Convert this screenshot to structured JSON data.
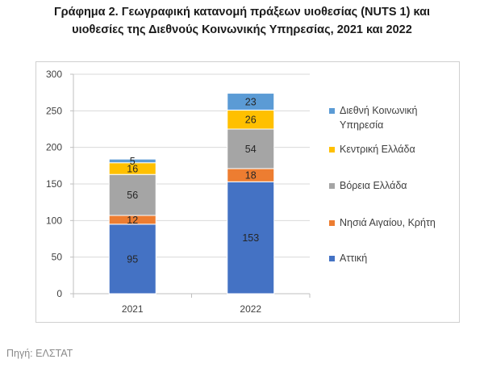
{
  "title": {
    "line1": "Γράφημα 2. Γεωγραφική κατανομή πράξεων υιοθεσίας (NUTS 1) και",
    "line2": "υιοθεσίες της Διεθνούς Κοινωνικής Υπηρεσίας, 2021 και 2022"
  },
  "source": "Πηγή: ΕΛΣΤΑΤ",
  "chart_data": {
    "type": "bar",
    "stacked": true,
    "title": "Γράφημα 2. Γεωγραφική κατανομή πράξεων υιοθεσίας (NUTS 1) και υιοθεσίες της Διεθνούς Κοινωνικής Υπηρεσίας, 2021 και 2022",
    "xlabel": "",
    "ylabel": "",
    "categories": [
      "2021",
      "2022"
    ],
    "ylim": [
      0,
      300
    ],
    "yticks": [
      0,
      50,
      100,
      150,
      200,
      250,
      300
    ],
    "grid": true,
    "legend_position": "right",
    "series": [
      {
        "name": "Αττική",
        "color": "#4472C4",
        "values": [
          95,
          153
        ]
      },
      {
        "name": "Νησιά Αιγαίου, Κρήτη",
        "color": "#ED7D31",
        "values": [
          12,
          18
        ]
      },
      {
        "name": "Βόρεια Ελλάδα",
        "color": "#A5A5A5",
        "values": [
          56,
          54
        ]
      },
      {
        "name": "Κεντρική Ελλάδα",
        "color": "#FFC000",
        "values": [
          16,
          26
        ]
      },
      {
        "name": "Διεθνή Κοινωνική Υπηρεσία",
        "color": "#5B9BD5",
        "values": [
          5,
          23
        ]
      }
    ],
    "legend_order": [
      {
        "label_lines": [
          "Διεθνή Κοινωνική",
          "Υπηρεσία"
        ],
        "series_index": 4
      },
      {
        "label_lines": [
          "Κεντρική Ελλάδα"
        ],
        "series_index": 3
      },
      {
        "label_lines": [
          "Βόρεια Ελλάδα"
        ],
        "series_index": 2
      },
      {
        "label_lines": [
          "Νησιά Αιγαίου, Κρήτη"
        ],
        "series_index": 1
      },
      {
        "label_lines": [
          "Αττική"
        ],
        "series_index": 0
      }
    ]
  }
}
